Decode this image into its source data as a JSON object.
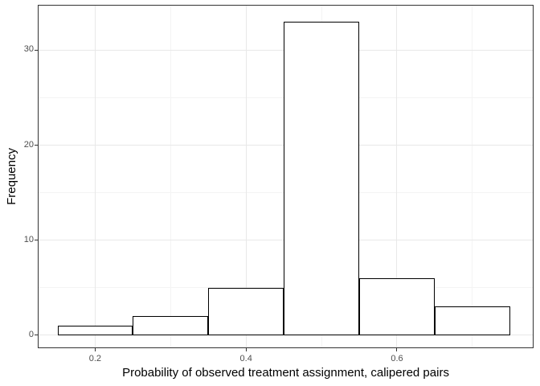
{
  "chart_data": {
    "type": "bar",
    "subtype": "histogram",
    "title": "",
    "xlabel": "Probability of observed treatment assignment, calipered pairs",
    "ylabel": "Frequency",
    "bins": [
      {
        "x0": 0.15,
        "x1": 0.25,
        "count": 1
      },
      {
        "x0": 0.25,
        "x1": 0.35,
        "count": 2
      },
      {
        "x0": 0.35,
        "x1": 0.45,
        "count": 5
      },
      {
        "x0": 0.45,
        "x1": 0.55,
        "count": 33
      },
      {
        "x0": 0.55,
        "x1": 0.65,
        "count": 6
      },
      {
        "x0": 0.65,
        "x1": 0.75,
        "count": 3
      }
    ],
    "x_axis": {
      "lim": [
        0.125,
        0.78
      ],
      "major_ticks": [
        {
          "value": 0.2,
          "label": "0.2"
        },
        {
          "value": 0.4,
          "label": "0.4"
        },
        {
          "value": 0.6,
          "label": "0.6"
        }
      ],
      "minor_ticks": [
        0.3,
        0.5,
        0.7
      ]
    },
    "y_axis": {
      "lim": [
        -1.3,
        34.7
      ],
      "major_ticks": [
        {
          "value": 0,
          "label": "0"
        },
        {
          "value": 10,
          "label": "10"
        },
        {
          "value": 20,
          "label": "20"
        },
        {
          "value": 30,
          "label": "30"
        }
      ],
      "minor_ticks": [
        5,
        15,
        25
      ]
    },
    "legend": false,
    "grid": true,
    "colors": {
      "background": "#FFFFFF",
      "panel_border": "#333333",
      "bar_fill": "#FFFFFF",
      "bar_stroke": "#000000",
      "grid_major": "#E8E8E8",
      "grid_minor": "#F4F4F4",
      "tick_mark": "#333333",
      "tick_label": "#4D4D4D",
      "axis_title": "#000000"
    }
  }
}
